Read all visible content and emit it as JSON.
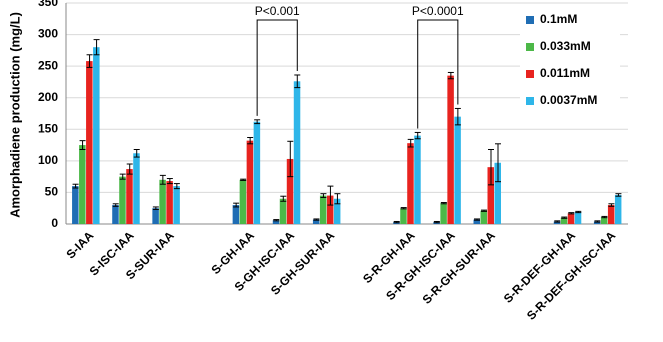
{
  "chart_data": {
    "type": "bar",
    "y_label": "Amorphadiene production (mg/L)",
    "categories": [
      "S-IAA",
      "S-ISC-IAA",
      "S-SUR-IAA",
      null,
      "S-GH-IAA",
      "S-GH-ISC-IAA",
      "S-GH-SUR-IAA",
      null,
      "S-R-GH-IAA",
      "S-R-GH-ISC-IAA",
      "S-R-GH-SUR-IAA",
      null,
      "S-R-DEF-GH-IAA",
      "S-R-DEF-GH-ISC-IAA"
    ],
    "series": [
      {
        "name": "0.1mM",
        "color": "#1f6db4",
        "values": [
          60,
          30,
          25,
          null,
          30,
          6,
          7,
          null,
          3,
          3,
          7,
          null,
          4,
          4
        ],
        "errors": [
          3,
          2,
          2,
          null,
          3,
          1,
          1,
          null,
          1,
          1,
          1,
          null,
          1,
          1
        ]
      },
      {
        "name": "0.033mM",
        "color": "#4cb848",
        "values": [
          125,
          75,
          70,
          null,
          70,
          40,
          45,
          null,
          25,
          33,
          21,
          null,
          10,
          11
        ],
        "errors": [
          7,
          4,
          7,
          null,
          1,
          4,
          3,
          null,
          1,
          1,
          1,
          null,
          1,
          1
        ]
      },
      {
        "name": "0.011mM",
        "color": "#e8231f",
        "values": [
          258,
          87,
          68,
          null,
          132,
          103,
          45,
          null,
          128,
          235,
          90,
          null,
          17,
          30
        ],
        "errors": [
          10,
          8,
          4,
          null,
          5,
          28,
          15,
          null,
          6,
          5,
          28,
          null,
          1,
          2
        ]
      },
      {
        "name": "0.0037mM",
        "color": "#2eb6e9",
        "values": [
          280,
          112,
          60,
          null,
          162,
          226,
          40,
          null,
          140,
          170,
          97,
          null,
          19,
          46
        ],
        "errors": [
          12,
          6,
          4,
          null,
          3,
          10,
          8,
          null,
          5,
          13,
          30,
          null,
          1,
          2
        ]
      }
    ],
    "annotations": [
      "P<0.001",
      "P<0.0001"
    ],
    "ylim": [
      0,
      350
    ],
    "yticks": [
      0,
      50,
      100,
      150,
      200,
      250,
      300,
      350
    ],
    "grid": true,
    "legend": "upper right"
  }
}
